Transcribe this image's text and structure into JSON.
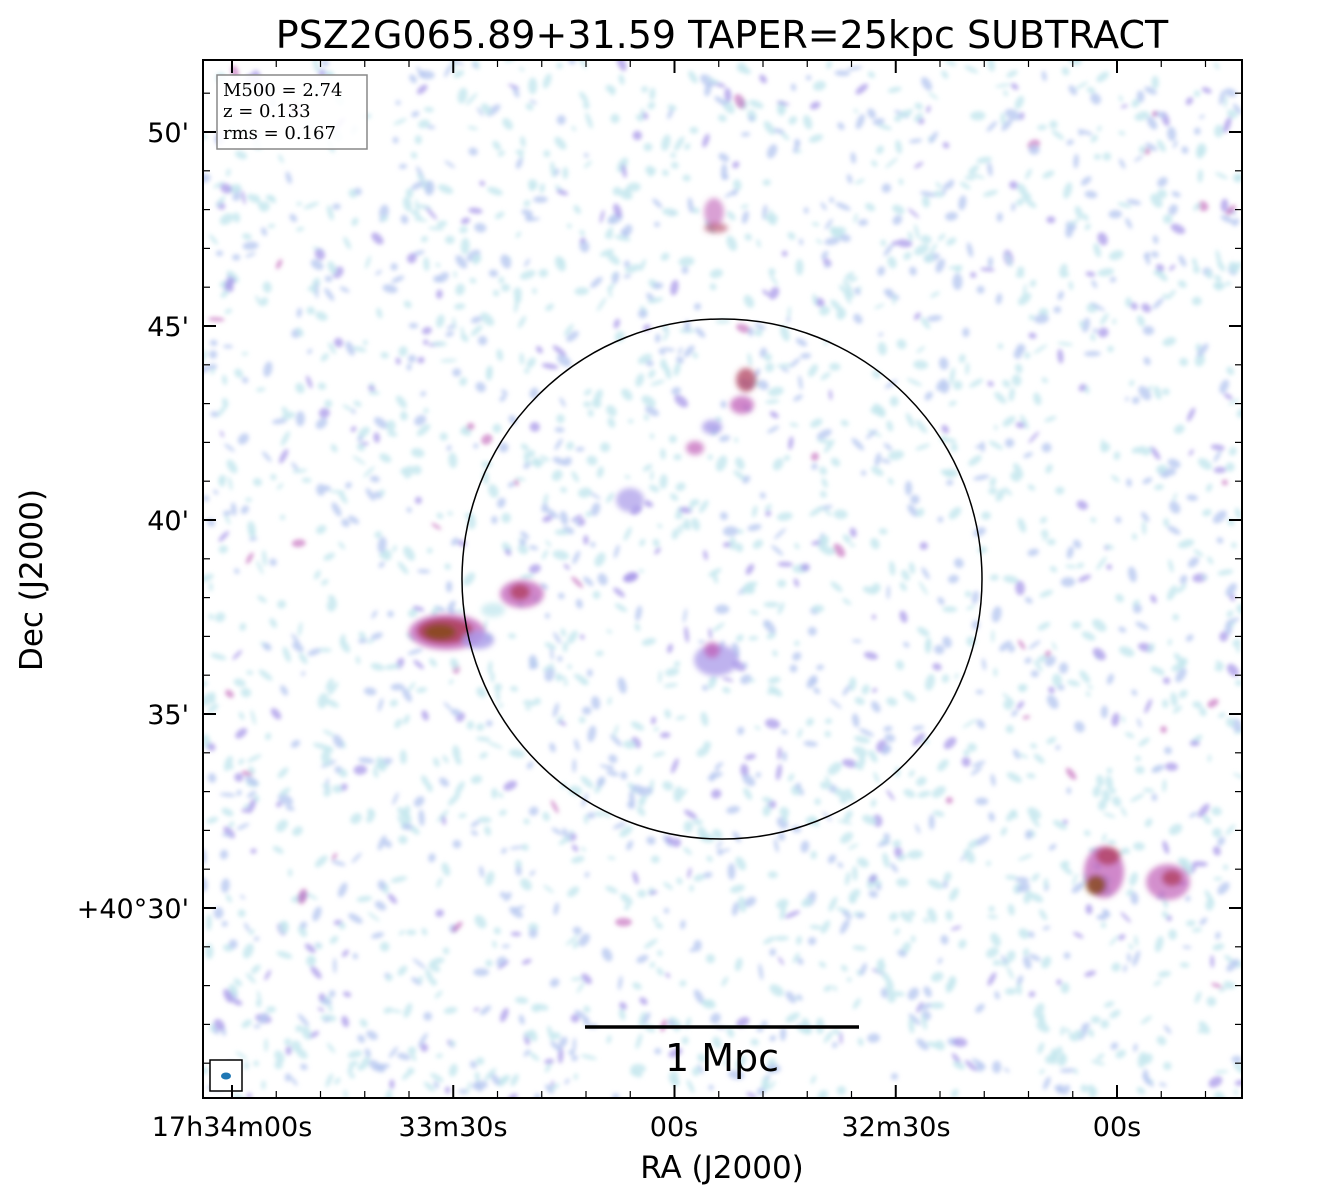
{
  "chart_data": {
    "type": "heatmap",
    "title": "PSZ2G065.89+31.59 TAPER=25kpc SUBTRACT",
    "xlabel": "RA (J2000)",
    "ylabel": "Dec (J2000)",
    "x_ticks": [
      "17h34m00s",
      "33m30s",
      "00s",
      "32m30s",
      "00s"
    ],
    "y_ticks": [
      "50'",
      "45'",
      "40'",
      "35'",
      "+40°30'"
    ],
    "info_box": {
      "line1": "M500 = 2.74",
      "line2": "z = 0.133",
      "line3": "rms = 0.167"
    },
    "scale_bar_label": "1 Mpc",
    "sources": [
      {
        "name": "west-source",
        "intensity": "high"
      },
      {
        "name": "west-inner-source",
        "intensity": "medium"
      },
      {
        "name": "north-filament",
        "intensity": "medium"
      },
      {
        "name": "southeast-source-a",
        "intensity": "high"
      },
      {
        "name": "southeast-source-b",
        "intensity": "medium"
      }
    ],
    "colormap": [
      "#c6e8ef",
      "#b8c8f0",
      "#a898e8",
      "#c060b8",
      "#b04060",
      "#8a4a20"
    ],
    "marker_circle": "R500 aperture",
    "beam_color": "#1f77b4",
    "grid": false
  }
}
